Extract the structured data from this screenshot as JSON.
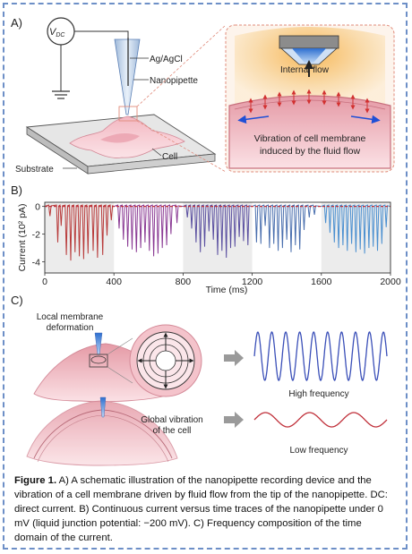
{
  "panel_a": {
    "letter": "A)",
    "vdc_main": "V",
    "vdc_sub": "DC",
    "ag_agcl": "Ag/AgCl",
    "nanopipette": "Nanopipette",
    "cell": "Cell",
    "substrate": "Substrate",
    "internal_flow": "Internal flow",
    "vibration_line1": "Vibration of cell membrane",
    "vibration_line2": "induced by the fluid flow"
  },
  "panel_b": {
    "letter": "B)",
    "chart_data": {
      "type": "line",
      "xlabel": "Time (ms)",
      "ylabel": "Current (10² pA)",
      "xlim": [
        0,
        2000
      ],
      "ylim": [
        -4.8,
        0.3
      ],
      "x_ticks": [
        0,
        400,
        800,
        1200,
        1600,
        2000
      ],
      "y_ticks": [
        0,
        -2,
        -4
      ],
      "baseline": 0,
      "background_bands": [
        [
          0,
          400
        ],
        [
          800,
          1200
        ],
        [
          1600,
          2000
        ]
      ],
      "series": [
        {
          "color": "#b83a3a",
          "x_range": [
            0,
            400
          ],
          "spikes": [
            [
              30,
              -0.7
            ],
            [
              75,
              -2.6
            ],
            [
              95,
              -1.4
            ],
            [
              125,
              -3.5
            ],
            [
              150,
              -3.9
            ],
            [
              175,
              -3.3
            ],
            [
              200,
              -3.6
            ],
            [
              225,
              -3.8
            ],
            [
              250,
              -3.4
            ],
            [
              280,
              -3.2
            ],
            [
              305,
              -3.7
            ],
            [
              335,
              -3.5
            ],
            [
              360,
              -2.1
            ],
            [
              385,
              -1.0
            ]
          ]
        },
        {
          "color": "#8a3a94",
          "x_range": [
            400,
            800
          ],
          "spikes": [
            [
              430,
              -1.6
            ],
            [
              455,
              -2.4
            ],
            [
              480,
              -2.9
            ],
            [
              505,
              -3.1
            ],
            [
              530,
              -3.3
            ],
            [
              555,
              -3.0
            ],
            [
              580,
              -2.6
            ],
            [
              605,
              -3.2
            ],
            [
              630,
              -3.6
            ],
            [
              655,
              -3.4
            ],
            [
              680,
              -3.0
            ],
            [
              705,
              -2.8
            ],
            [
              730,
              -2.0
            ],
            [
              765,
              -1.2
            ]
          ]
        },
        {
          "color": "#5a4fa0",
          "x_range": [
            800,
            1200
          ],
          "spikes": [
            [
              825,
              -0.8
            ],
            [
              850,
              -1.6
            ],
            [
              875,
              -2.6
            ],
            [
              900,
              -3.3
            ],
            [
              925,
              -2.9
            ],
            [
              950,
              -1.8
            ],
            [
              975,
              -2.4
            ],
            [
              1000,
              -3.5
            ],
            [
              1025,
              -3.2
            ],
            [
              1050,
              -3.7
            ],
            [
              1075,
              -3.0
            ],
            [
              1100,
              -2.9
            ],
            [
              1125,
              -2.2
            ],
            [
              1150,
              -2.5
            ],
            [
              1175,
              -2.8
            ]
          ]
        },
        {
          "color": "#4a6fae",
          "x_range": [
            1200,
            1600
          ],
          "spikes": [
            [
              1225,
              -2.6
            ],
            [
              1250,
              -2.7
            ],
            [
              1275,
              -1.4
            ],
            [
              1300,
              -3.0
            ],
            [
              1325,
              -2.7
            ],
            [
              1350,
              -3.2
            ],
            [
              1375,
              -3.0
            ],
            [
              1400,
              -2.4
            ],
            [
              1425,
              -3.3
            ],
            [
              1450,
              -2.8
            ],
            [
              1475,
              -3.1
            ],
            [
              1500,
              -1.7
            ],
            [
              1530,
              -0.8
            ],
            [
              1560,
              -0.6
            ]
          ]
        },
        {
          "color": "#4a8fd0",
          "x_range": [
            1600,
            2000
          ],
          "spikes": [
            [
              1625,
              -1.2
            ],
            [
              1650,
              -1.9
            ],
            [
              1675,
              -2.6
            ],
            [
              1700,
              -3.0
            ],
            [
              1725,
              -2.8
            ],
            [
              1750,
              -3.2
            ],
            [
              1775,
              -2.7
            ],
            [
              1800,
              -3.3
            ],
            [
              1825,
              -3.1
            ],
            [
              1850,
              -3.4
            ],
            [
              1875,
              -3.0
            ],
            [
              1900,
              -2.9
            ],
            [
              1925,
              -3.2
            ],
            [
              1950,
              -2.7
            ],
            [
              1975,
              -1.5
            ]
          ]
        }
      ]
    }
  },
  "panel_c": {
    "letter": "C)",
    "local_line1": "Local membrane",
    "local_line2": "deformation",
    "global_line1": "Global vibration",
    "global_line2": "of the cell",
    "high_freq": "High frequency",
    "low_freq": "Low frequency",
    "wave_colors": {
      "high": "#3a4fb8",
      "low": "#c0303a"
    }
  },
  "caption": {
    "fig_label": "Figure 1.",
    "text": "A) A schematic illustration of the nanopipette recording device and the vibration of a cell membrane driven by fluid flow from the tip of the nanopipette. DC: direct current. B) Continuous current versus time traces of the nanopipette under 0 mV (liquid junction potential: −200 mV). C) Frequency composition of the time domain of the current."
  }
}
